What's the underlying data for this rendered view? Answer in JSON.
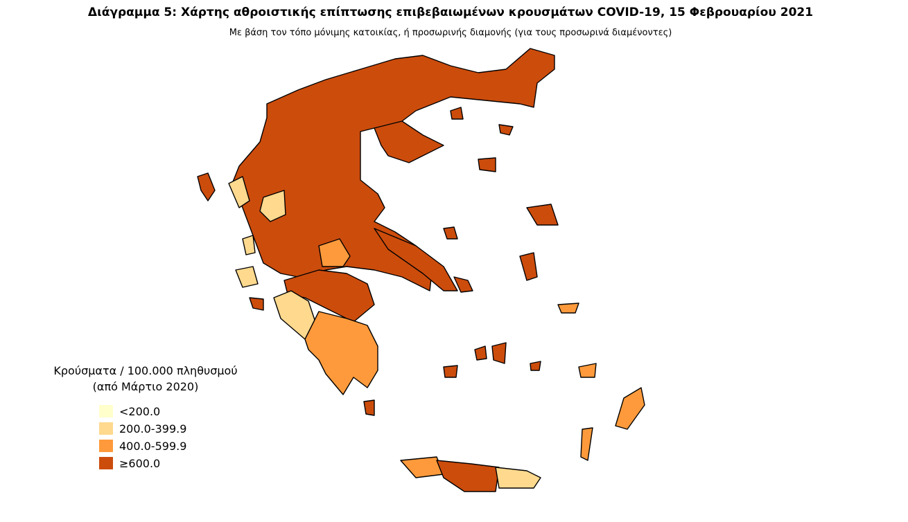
{
  "header": {
    "title": "Διάγραμμα 5: Χάρτης αθροιστικής επίπτωσης επιβεβαιωμένων κρουσμάτων COVID-19, 15 Φεβρουαρίου 2021",
    "subtitle": "Με βάση τον τόπο μόνιμης κατοικίας, ή προσωρινής διαμονής (για τους προσωρινά διαμένοντες)"
  },
  "legend": {
    "title_lines": [
      "Κρούσματα / 100.000 πληθυσμού",
      "(από Μάρτιο 2020)"
    ],
    "items": [
      {
        "label": "<200.0",
        "color": "#ffffcc"
      },
      {
        "label": "200.0-399.9",
        "color": "#fed98e"
      },
      {
        "label": "400.0-599.9",
        "color": "#fe9a3b"
      },
      {
        "label": "≥600.0",
        "color": "#cc4c0c"
      }
    ]
  }
}
